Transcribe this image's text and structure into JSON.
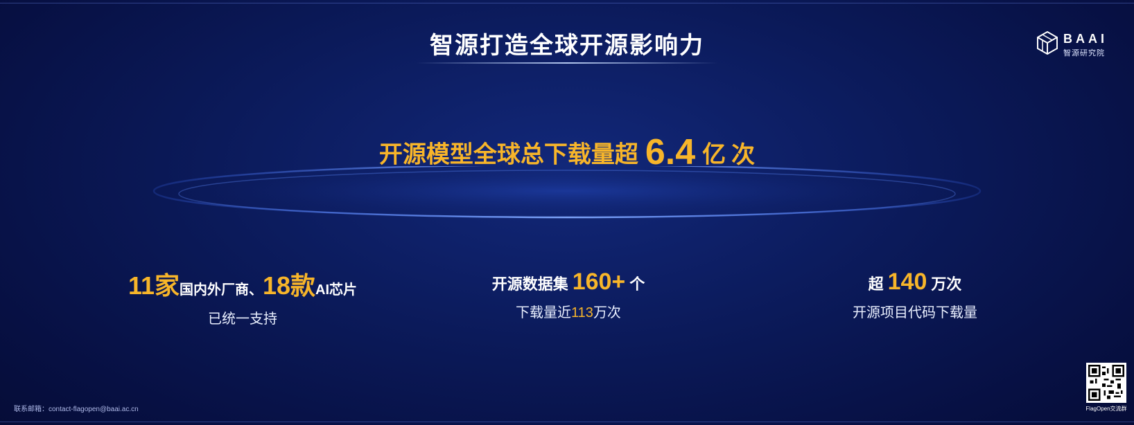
{
  "slide": {
    "title": "智源打造全球开源影响力",
    "logo": {
      "text": "BAAI",
      "subtitle": "智源研究院"
    },
    "headline": {
      "text": "开源模型全球总下载量超",
      "number": "6.4",
      "unit": "亿",
      "suffix": "次"
    },
    "stats": {
      "left": {
        "count1": "11家",
        "text1": "国内外厂商、",
        "count2": "18款",
        "text2": "AI芯片",
        "line2": "已统一支持"
      },
      "mid": {
        "prefix": "开源数据集",
        "number": "160+",
        "suffix": "个",
        "line2_prefix": "下载量近",
        "line2_number": "113",
        "line2_suffix": "万次"
      },
      "right": {
        "prefix": "超",
        "number": "140",
        "suffix": "万次",
        "line2": "开源项目代码下载量"
      }
    },
    "contact": "联系邮箱：contact-flagopen@baai.ac.cn",
    "qr_label": "FlagOpen交流群"
  },
  "colors": {
    "accent": "#f7b52a",
    "background": "#0b1a5a"
  }
}
